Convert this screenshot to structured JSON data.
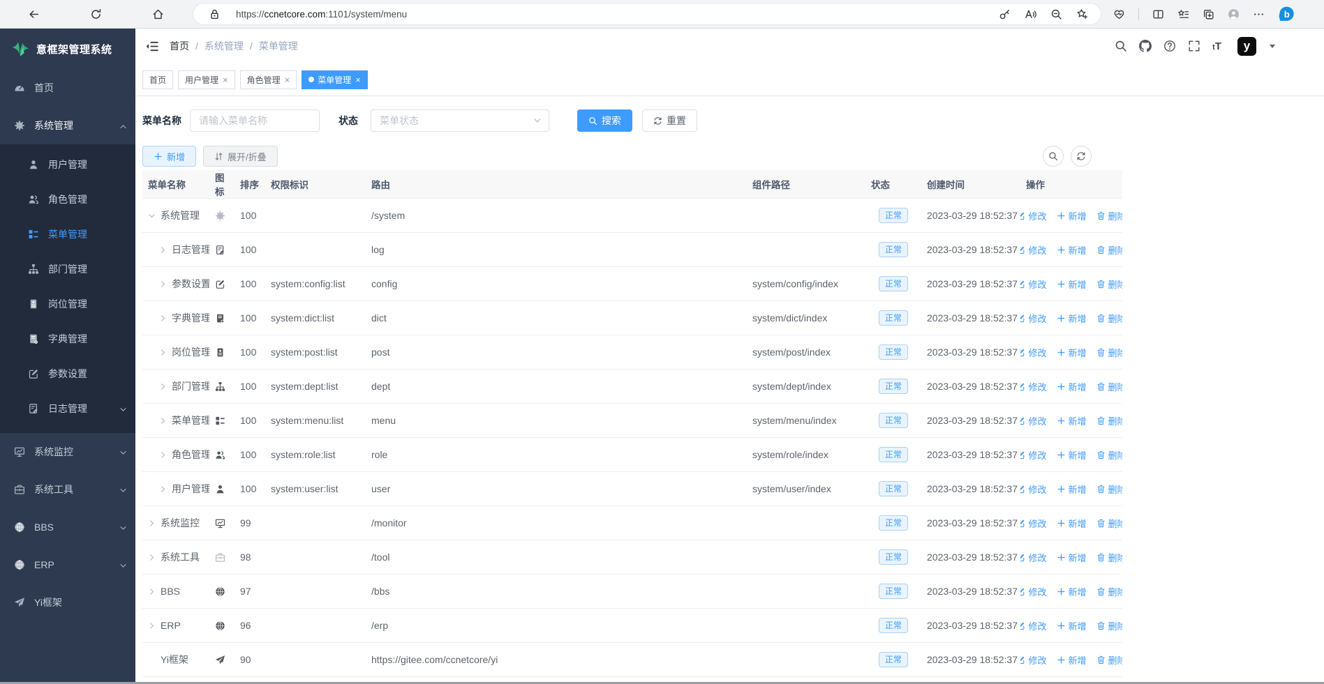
{
  "browser": {
    "left_icons": [
      "back-icon",
      "refresh-icon",
      "home-icon"
    ],
    "address": {
      "prefix": "https://",
      "domain": "ccnetcore.com",
      "suffix": ":1101/system/menu"
    },
    "pill_right_icons": [
      "key-icon",
      "read-aloud-icon",
      "zoom-out-icon",
      "star-add-icon"
    ],
    "right_icons": [
      "browser-essentials-icon",
      "divider",
      "split-screen-icon",
      "favorites-icon",
      "collections-icon",
      "profile-icon",
      "more-icon",
      "bing-icon"
    ]
  },
  "sidebar": {
    "logo_title": "意框架管理系统",
    "items": [
      {
        "label": "首页",
        "icon": "dashboard-icon",
        "type": "top"
      },
      {
        "label": "系统管理",
        "icon": "gear-icon",
        "type": "top",
        "expanded": true
      },
      {
        "label": "用户管理",
        "icon": "user-icon",
        "type": "sub"
      },
      {
        "label": "角色管理",
        "icon": "users-icon",
        "type": "sub"
      },
      {
        "label": "菜单管理",
        "icon": "menu-list-icon",
        "type": "sub",
        "active": true
      },
      {
        "label": "部门管理",
        "icon": "sitemap-icon",
        "type": "sub"
      },
      {
        "label": "岗位管理",
        "icon": "badge-icon",
        "type": "sub"
      },
      {
        "label": "字典管理",
        "icon": "book-icon",
        "type": "sub"
      },
      {
        "label": "参数设置",
        "icon": "edit-icon",
        "type": "sub"
      },
      {
        "label": "日志管理",
        "icon": "log-icon",
        "type": "sub",
        "chevron": true
      },
      {
        "label": "系统监控",
        "icon": "monitor-icon",
        "type": "top",
        "chevron": true
      },
      {
        "label": "系统工具",
        "icon": "toolbox-icon",
        "type": "top",
        "chevron": true
      },
      {
        "label": "BBS",
        "icon": "globe-icon",
        "type": "top",
        "chevron": true
      },
      {
        "label": "ERP",
        "icon": "globe-icon",
        "type": "top",
        "chevron": true
      },
      {
        "label": "Yi框架",
        "icon": "plane-icon",
        "type": "top"
      }
    ]
  },
  "header": {
    "breadcrumb": [
      "首页",
      "系统管理",
      "菜单管理"
    ],
    "right_icons": [
      "search-icon",
      "github-icon",
      "help-icon",
      "fullscreen-icon"
    ],
    "font_size_icon_text": "tT",
    "logo_letter": "y"
  },
  "tabs": [
    {
      "label": "首页",
      "closable": false,
      "active": false
    },
    {
      "label": "用户管理",
      "closable": true,
      "active": false
    },
    {
      "label": "角色管理",
      "closable": true,
      "active": false
    },
    {
      "label": "菜单管理",
      "closable": true,
      "active": true
    }
  ],
  "filters": {
    "name_label": "菜单名称",
    "name_placeholder": "请输入菜单名称",
    "status_label": "状态",
    "status_placeholder": "菜单状态",
    "search_label": "搜索",
    "reset_label": "重置"
  },
  "toolbar": {
    "add_label": "新增",
    "expand_label": "展开/折叠"
  },
  "table": {
    "columns": [
      "菜单名称",
      "图标",
      "排序",
      "权限标识",
      "路由",
      "组件路径",
      "状态",
      "创建时间",
      "操作"
    ],
    "actions": {
      "edit": "修改",
      "add": "新增",
      "delete": "删除"
    },
    "rows": [
      {
        "name": "系统管理",
        "arrow": "down",
        "level": 0,
        "icon": "gear-icon",
        "icon_light": true,
        "sort": "100",
        "perm": "",
        "route": "/system",
        "component": "",
        "status": "正常",
        "created": "2023-03-29 18:52:37"
      },
      {
        "name": "日志管理",
        "arrow": "right",
        "level": 1,
        "icon": "log-icon",
        "icon_light": false,
        "sort": "100",
        "perm": "",
        "route": "log",
        "component": "",
        "status": "正常",
        "created": "2023-03-29 18:52:37"
      },
      {
        "name": "参数设置",
        "arrow": "right",
        "level": 1,
        "icon": "edit-icon",
        "icon_light": false,
        "sort": "100",
        "perm": "system:config:list",
        "route": "config",
        "component": "system/config/index",
        "status": "正常",
        "created": "2023-03-29 18:52:37"
      },
      {
        "name": "字典管理",
        "arrow": "right",
        "level": 1,
        "icon": "book-icon",
        "icon_light": false,
        "sort": "100",
        "perm": "system:dict:list",
        "route": "dict",
        "component": "system/dict/index",
        "status": "正常",
        "created": "2023-03-29 18:52:37"
      },
      {
        "name": "岗位管理",
        "arrow": "right",
        "level": 1,
        "icon": "badge-icon",
        "icon_light": false,
        "sort": "100",
        "perm": "system:post:list",
        "route": "post",
        "component": "system/post/index",
        "status": "正常",
        "created": "2023-03-29 18:52:37"
      },
      {
        "name": "部门管理",
        "arrow": "right",
        "level": 1,
        "icon": "sitemap-icon",
        "icon_light": false,
        "sort": "100",
        "perm": "system:dept:list",
        "route": "dept",
        "component": "system/dept/index",
        "status": "正常",
        "created": "2023-03-29 18:52:37"
      },
      {
        "name": "菜单管理",
        "arrow": "right",
        "level": 1,
        "icon": "menu-list-icon",
        "icon_light": false,
        "sort": "100",
        "perm": "system:menu:list",
        "route": "menu",
        "component": "system/menu/index",
        "status": "正常",
        "created": "2023-03-29 18:52:37"
      },
      {
        "name": "角色管理",
        "arrow": "right",
        "level": 1,
        "icon": "users-icon",
        "icon_light": false,
        "sort": "100",
        "perm": "system:role:list",
        "route": "role",
        "component": "system/role/index",
        "status": "正常",
        "created": "2023-03-29 18:52:37"
      },
      {
        "name": "用户管理",
        "arrow": "right",
        "level": 1,
        "icon": "user-icon",
        "icon_light": false,
        "sort": "100",
        "perm": "system:user:list",
        "route": "user",
        "component": "system/user/index",
        "status": "正常",
        "created": "2023-03-29 18:52:37"
      },
      {
        "name": "系统监控",
        "arrow": "right",
        "level": 0,
        "icon": "monitor-icon",
        "icon_light": false,
        "sort": "99",
        "perm": "",
        "route": "/monitor",
        "component": "",
        "status": "正常",
        "created": "2023-03-29 18:52:37"
      },
      {
        "name": "系统工具",
        "arrow": "right",
        "level": 0,
        "icon": "toolbox-icon",
        "icon_light": true,
        "sort": "98",
        "perm": "",
        "route": "/tool",
        "component": "",
        "status": "正常",
        "created": "2023-03-29 18:52:37"
      },
      {
        "name": "BBS",
        "arrow": "right",
        "level": 0,
        "icon": "globe-icon",
        "icon_light": false,
        "sort": "97",
        "perm": "",
        "route": "/bbs",
        "component": "",
        "status": "正常",
        "created": "2023-03-29 18:52:37"
      },
      {
        "name": "ERP",
        "arrow": "right",
        "level": 0,
        "icon": "globe-icon",
        "icon_light": false,
        "sort": "96",
        "perm": "",
        "route": "/erp",
        "component": "",
        "status": "正常",
        "created": "2023-03-29 18:52:37"
      },
      {
        "name": "Yi框架",
        "arrow": "none",
        "level": 0,
        "icon": "plane-icon",
        "icon_light": false,
        "sort": "90",
        "perm": "",
        "route": "https://gitee.com/ccnetcore/yi",
        "component": "",
        "status": "正常",
        "created": "2023-03-29 18:52:37"
      }
    ]
  },
  "colors": {
    "accent_blue": "#3e9bff",
    "sidebar_bg": "#2e3a4f",
    "submenu_bg": "#212b3c",
    "badge_bg": "#e9f4ff",
    "logo_green": "#3db882"
  }
}
